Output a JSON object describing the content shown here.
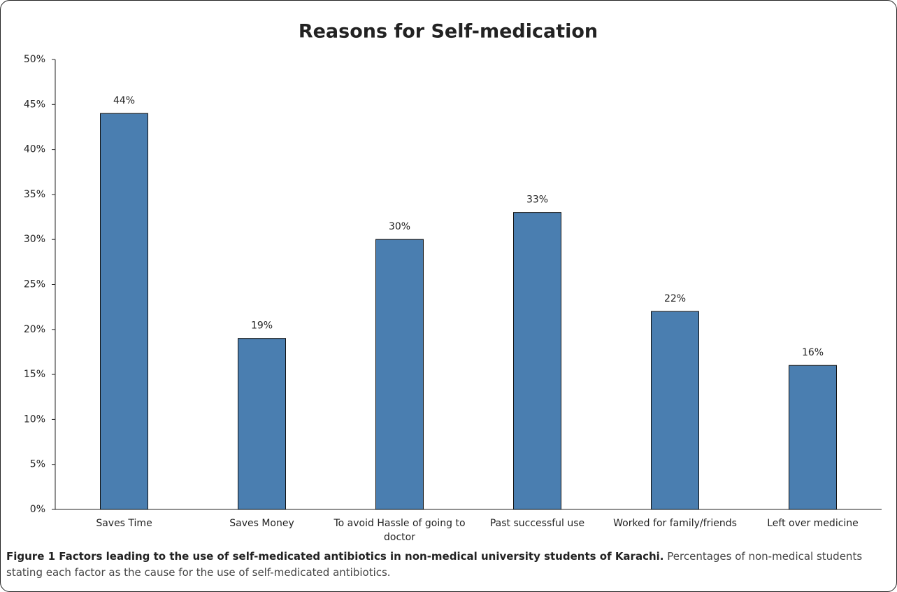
{
  "chart_data": {
    "type": "bar",
    "title": "Reasons for Self-medication",
    "categories": [
      "Saves Time",
      "Saves Money",
      "To avoid Hassle of going to doctor",
      "Past successful use",
      "Worked for family/friends",
      "Left over medicine"
    ],
    "values": [
      44,
      19,
      30,
      33,
      22,
      16
    ],
    "value_labels": [
      "44%",
      "19%",
      "30%",
      "33%",
      "22%",
      "16%"
    ],
    "color": "#4a7eb0",
    "ylim": [
      0,
      50
    ],
    "yticks": [
      {
        "value": 0,
        "label": "0%"
      },
      {
        "value": 5,
        "label": "5%"
      },
      {
        "value": 10,
        "label": "10%"
      },
      {
        "value": 15,
        "label": "15%"
      },
      {
        "value": 20,
        "label": "20%"
      },
      {
        "value": 25,
        "label": "25%"
      },
      {
        "value": 30,
        "label": "30%"
      },
      {
        "value": 35,
        "label": "35%"
      },
      {
        "value": 40,
        "label": "40%"
      },
      {
        "value": 45,
        "label": "45%"
      },
      {
        "value": 50,
        "label": "50%"
      }
    ],
    "grid": false,
    "caption_title": "Figure 1 Factors leading to the use of self-medicated antibiotics in non-medical university students of Karachi.",
    "caption": "Percentages of non-medical students stating each factor as the cause for the use of self-medicated antibiotics."
  }
}
